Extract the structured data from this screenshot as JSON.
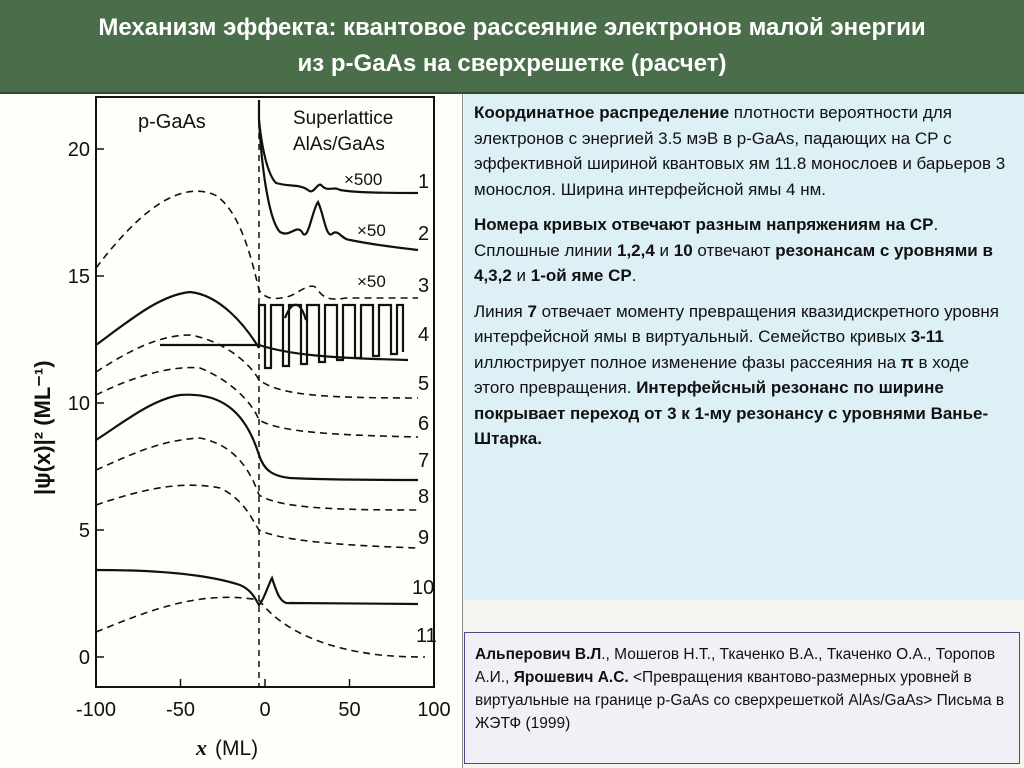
{
  "header": {
    "title_line1": "Механизм эффекта: квантовое рассеяние электронов малой энергии",
    "title_line2": "из p-GaAs на сверхрешетке (расчет)"
  },
  "colors": {
    "header_bg": "#4a6e4a",
    "info_bg": "#dcf0f5",
    "ref_border": "#4a4a8a"
  },
  "chart_data": {
    "type": "line",
    "region_left_label": "p-GaAs",
    "region_right_label_1": "Superlattice",
    "region_right_label_2": "AlAs/GaAs",
    "xlabel_italic": "x",
    "xlabel_unit": "(ML)",
    "ylabel": "|ψ(x)|²  (ML⁻¹)",
    "xlim": [
      -100,
      100
    ],
    "ylim": [
      -1,
      22
    ],
    "x_ticks": [
      "-100",
      "-50",
      "0",
      "50",
      "100"
    ],
    "y_ticks": [
      "0",
      "5",
      "10",
      "15",
      "20"
    ],
    "scale_labels": [
      "×500",
      "×50",
      "×50"
    ],
    "curve_labels": [
      "1",
      "2",
      "3",
      "4",
      "5",
      "6",
      "7",
      "8",
      "9",
      "10",
      "11"
    ]
  },
  "info": {
    "p1_bold": "Координатное распределение",
    "p1_text": " плотности вероятности для электронов с энергией 3.5 мэВ в p-GaAs, падающих на СР с эффективной шириной квантовых ям 11.8 монослоев и барьеров 3 монослоя. Ширина интерфейсной ямы 4 нм.",
    "p2_bold": "Номера кривых отвечают разным напряжениям на СР",
    "p2_dot": ".",
    "p2_t1": "Сплошные линии ",
    "p2_b1": "1,2,4",
    "p2_t2": " и ",
    "p2_b2": "10",
    "p2_t3": " отвечают ",
    "p2_b3": "резонансам с уровнями в 4,3,2",
    "p2_t4": " и ",
    "p2_b4": "1-ой яме СР",
    "p2_t5": ".",
    "p3_t1": "Линия ",
    "p3_b1": "7",
    "p3_t2": " отвечает моменту превращения квазидискретного уровня интерфейсной ямы в виртуальный. Семейство кривых ",
    "p3_b2": "3-11",
    "p3_t3": " иллюстрирует полное изменение фазы рассеяния на ",
    "p3_b3": "π",
    "p3_t4": " в ходе этого превращения.  ",
    "p3_b4": "Интерфейсный резонанс по ширине покрывает переход от 3 к 1-му резонансу с уровнями Ванье-Штарка."
  },
  "reference": {
    "a1": "Альперович В.Л",
    "t1": "., Мошегов Н.Т., Ткаченко В.А., Ткаченко О.А., Торопов А.И., ",
    "a2": "Ярошевич А.С.",
    "t2": "  <Превращения квантово-размерных уровней в виртуальные на границе p-GaAs со сверхрешеткой AlAs/GaAs>  Письма в ЖЭТФ (1999)"
  }
}
